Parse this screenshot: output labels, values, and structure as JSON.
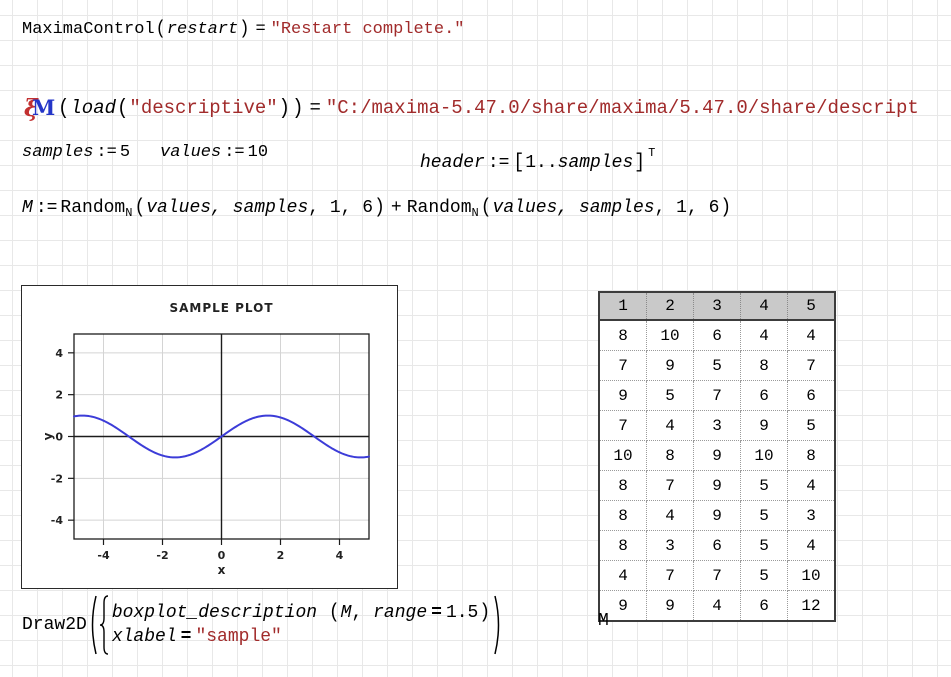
{
  "colors": {
    "string_red": "#a12b2b",
    "curve_blue": "#3c3cd8",
    "sheet_grid": "#e8e8e8",
    "table_header_bg": "#c9c9c9"
  },
  "expr1": {
    "fn": "MaximaControl",
    "open": "(",
    "arg": "restart",
    "close": ")",
    "eq": "=",
    "result": "\"Restart complete.\""
  },
  "expr2": {
    "icon": "maxima-logo-icon",
    "xi": "ξ",
    "m": "M",
    "open": "(",
    "fn": "load",
    "inner_open": "(",
    "arg": "\"descriptive\"",
    "inner_close": ")",
    "close": ")",
    "eq": "=",
    "result": "\"C:/maxima-5.47.0/share/maxima/5.47.0/share/descript"
  },
  "expr3": {
    "lhs": "samples",
    "assign": ":=",
    "rhs": "5"
  },
  "expr4": {
    "lhs": "values",
    "assign": ":=",
    "rhs": "10"
  },
  "expr5": {
    "lhs": "header",
    "assign": ":=",
    "open": "[",
    "range": "1..",
    "var": "samples",
    "close": "]",
    "sup": "T"
  },
  "expr6": {
    "lhs": "M",
    "assign": ":=",
    "fn1": "Random",
    "sub1": "N",
    "open1": "(",
    "vars1": "values, samples",
    "nums1": ", 1, 6",
    "close1": ")",
    "plus": "+",
    "fn2": "Random",
    "sub2": "N",
    "open2": "(",
    "vars2": "values, samples",
    "nums2": ", 1, 6",
    "close2": ")"
  },
  "chart_data": {
    "type": "line",
    "title": "SAMPLE PLOT",
    "xlabel": "x",
    "ylabel": "y",
    "xlim": [
      -5,
      5
    ],
    "ylim": [
      -4.9,
      4.9
    ],
    "xticks": [
      -4,
      -2,
      0,
      2,
      4
    ],
    "yticks": [
      4,
      2,
      0,
      -2,
      -4
    ],
    "grid": true,
    "series": [
      {
        "name": "sin(x)",
        "function": "sin",
        "color": "#3c3cd8",
        "sample_step": 0.05
      }
    ]
  },
  "matrix_table": {
    "headers": [
      "1",
      "2",
      "3",
      "4",
      "5"
    ],
    "rows": [
      [
        8,
        10,
        6,
        4,
        4
      ],
      [
        7,
        9,
        5,
        8,
        7
      ],
      [
        9,
        5,
        7,
        6,
        6
      ],
      [
        7,
        4,
        3,
        9,
        5
      ],
      [
        10,
        8,
        9,
        10,
        8
      ],
      [
        8,
        7,
        9,
        5,
        4
      ],
      [
        8,
        4,
        9,
        5,
        3
      ],
      [
        8,
        3,
        6,
        5,
        4
      ],
      [
        4,
        7,
        7,
        5,
        10
      ],
      [
        9,
        9,
        4,
        6,
        12
      ]
    ],
    "caption": "M"
  },
  "draw2d": {
    "fn": "Draw2D",
    "row1": {
      "fn": "boxplot_description",
      "open": "(",
      "arg1": "M",
      "comma": ",",
      "arg2": "range",
      "eq": "=",
      "val": "1.5",
      "close": ")"
    },
    "row2": {
      "lhs": "xlabel",
      "eq": "=",
      "val": "\"sample\""
    }
  }
}
